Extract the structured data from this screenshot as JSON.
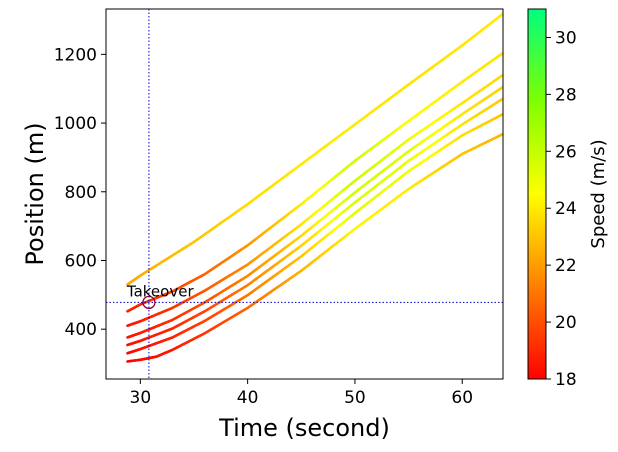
{
  "chart_data": {
    "type": "line",
    "xlabel": "Time (second)",
    "ylabel": "Position (m)",
    "xlim": [
      26.8,
      63.8
    ],
    "ylim": [
      255,
      1332
    ],
    "xticks": [
      30,
      40,
      50,
      60
    ],
    "yticks": [
      400,
      600,
      800,
      1000,
      1200
    ],
    "grid": false,
    "colorbar": {
      "label": "Speed (m/s)",
      "range": [
        18,
        31
      ],
      "ticks": [
        18,
        20,
        22,
        24,
        26,
        28,
        30
      ],
      "colors": [
        "#ff0000",
        "#ff7f00",
        "#ffff00",
        "#7fff00",
        "#00ff7f"
      ]
    },
    "reference_lines": {
      "x": 30.8,
      "y": 478,
      "color": "#0000cc"
    },
    "annotation": {
      "text": "Takeover",
      "x": 30.8,
      "y": 478
    },
    "series": [
      {
        "x": [
          28.8,
          30,
          35,
          40,
          45,
          50,
          55,
          60,
          63.8
        ],
        "y": [
          530,
          556,
          654,
          764,
          880,
          996,
          1112,
          1226,
          1318
        ],
        "speed": [
          22.2,
          22.4,
          23.0,
          23.6,
          24.0,
          24.0,
          23.8,
          23.9,
          24.0
        ]
      },
      {
        "x": [
          28.8,
          30,
          33,
          36,
          40,
          45,
          50,
          55,
          60,
          63.8
        ],
        "y": [
          452,
          472,
          510,
          560,
          644,
          764,
          890,
          1006,
          1120,
          1204
        ],
        "speed": [
          18.8,
          19.0,
          19.6,
          20.5,
          21.8,
          24.0,
          25.8,
          24.6,
          24.0,
          23.8
        ]
      },
      {
        "x": [
          28.8,
          30,
          33,
          36,
          40,
          45,
          50,
          55,
          60,
          63.8
        ],
        "y": [
          410,
          423,
          462,
          512,
          588,
          705,
          832,
          952,
          1058,
          1140
        ],
        "speed": [
          18.5,
          18.7,
          19.3,
          20.2,
          21.6,
          23.8,
          25.9,
          25.0,
          23.9,
          23.5
        ]
      },
      {
        "x": [
          28.8,
          30,
          33,
          36,
          40,
          45,
          50,
          55,
          60,
          63.8
        ],
        "y": [
          376,
          389,
          427,
          478,
          555,
          672,
          798,
          918,
          1026,
          1105
        ],
        "speed": [
          18.4,
          18.6,
          19.1,
          20.0,
          21.4,
          23.5,
          25.7,
          25.3,
          23.9,
          23.3
        ]
      },
      {
        "x": [
          28.8,
          30,
          33,
          36,
          40,
          45,
          50,
          55,
          60,
          63.8
        ],
        "y": [
          354,
          366,
          402,
          452,
          528,
          643,
          769,
          890,
          996,
          1071
        ],
        "speed": [
          18.3,
          18.5,
          18.9,
          19.8,
          21.2,
          23.3,
          25.5,
          25.1,
          23.8,
          23.1
        ]
      },
      {
        "x": [
          28.8,
          30,
          33,
          36,
          40,
          45,
          50,
          55,
          60,
          63.8
        ],
        "y": [
          330,
          342,
          376,
          424,
          499,
          612,
          738,
          860,
          964,
          1026
        ],
        "speed": [
          18.2,
          18.4,
          18.8,
          19.6,
          21.0,
          23.0,
          25.2,
          24.9,
          23.7,
          23.0
        ]
      },
      {
        "x": [
          28.8,
          30,
          31.5,
          33,
          36,
          40,
          45,
          50,
          55,
          60,
          63.8
        ],
        "y": [
          306,
          311,
          320,
          340,
          388,
          462,
          570,
          692,
          808,
          910,
          968
        ],
        "speed": [
          18.1,
          18.2,
          18.3,
          18.6,
          19.3,
          20.6,
          22.6,
          24.3,
          24.0,
          23.0,
          22.6
        ]
      }
    ]
  }
}
